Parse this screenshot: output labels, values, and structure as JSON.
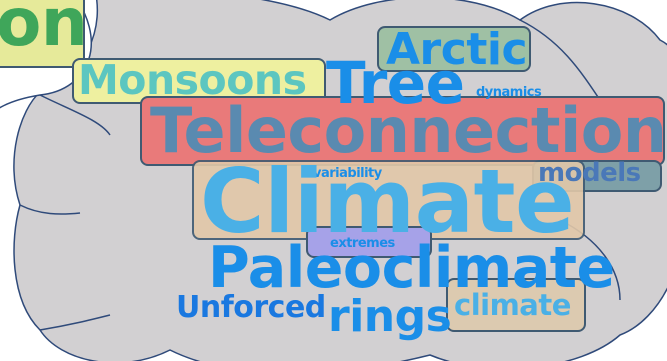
{
  "colors": {
    "cloud_fill": "#d2d0d2",
    "cloud_stroke": "#2f4a7a",
    "highlight_stroke": "#3f5a72",
    "word_cyan": "#4ab0e6",
    "word_blue": "#1a8ee8",
    "word_teal": "#5cc6c0",
    "word_green": "#3fa65a",
    "word_purple": "#7a5ab0",
    "highlight_red": "#e97a7a",
    "highlight_yellow": "#eef0a0",
    "highlight_green": "#a8c6a8",
    "highlight_blue": "#8aa0d8"
  },
  "words": {
    "partial": "on",
    "arctic": "Arctic",
    "monsoons": "Monsoons",
    "tree": "Tree",
    "dynamics": "dynamics",
    "teleconnections": "Teleconnections",
    "variability": "variability",
    "models": "models",
    "climate_big": "Climate",
    "extremes": "extremes",
    "paleoclimate": "Paleoclimate",
    "unforced": "Unforced",
    "rings": "rings",
    "climate_small": "climate"
  }
}
